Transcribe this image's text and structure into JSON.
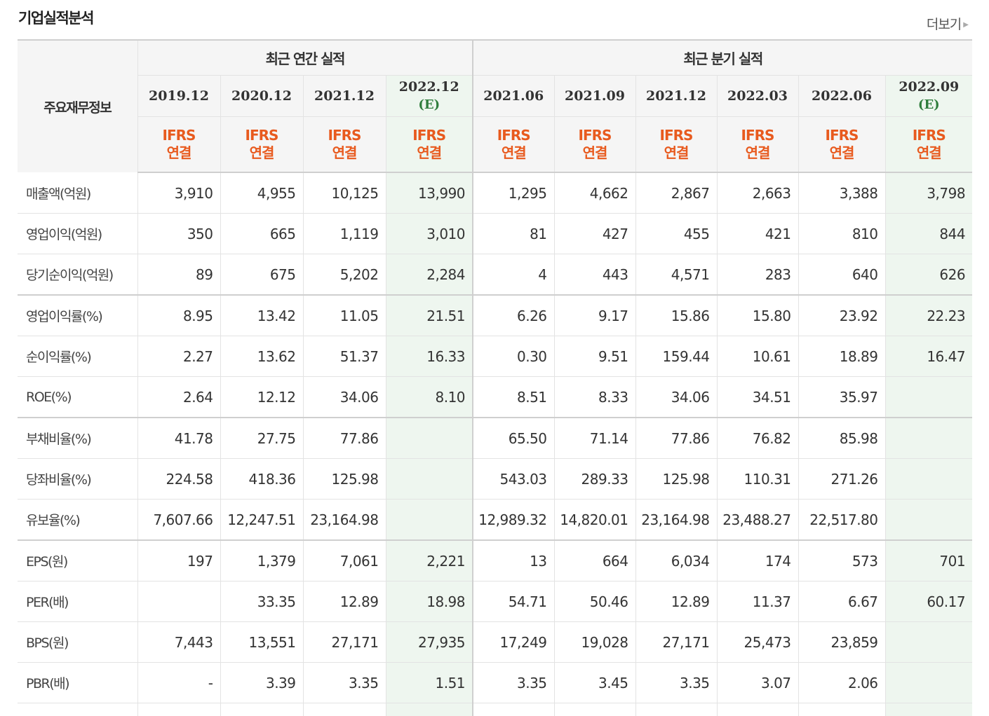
{
  "section": {
    "title": "기업실적분석",
    "more_label": "더보기"
  },
  "table": {
    "topic_header": "주요재무정보",
    "annual_header": "최근 연간 실적",
    "quarterly_header": "최근 분기 실적",
    "periods": [
      {
        "date": "2019.12",
        "est": "",
        "ifrs": "IFRS",
        "basis": "연결"
      },
      {
        "date": "2020.12",
        "est": "",
        "ifrs": "IFRS",
        "basis": "연결"
      },
      {
        "date": "2021.12",
        "est": "",
        "ifrs": "IFRS",
        "basis": "연결"
      },
      {
        "date": "2022.12",
        "est": "(E)",
        "ifrs": "IFRS",
        "basis": "연결"
      },
      {
        "date": "2021.06",
        "est": "",
        "ifrs": "IFRS",
        "basis": "연결"
      },
      {
        "date": "2021.09",
        "est": "",
        "ifrs": "IFRS",
        "basis": "연결"
      },
      {
        "date": "2021.12",
        "est": "",
        "ifrs": "IFRS",
        "basis": "연결"
      },
      {
        "date": "2022.03",
        "est": "",
        "ifrs": "IFRS",
        "basis": "연결"
      },
      {
        "date": "2022.06",
        "est": "",
        "ifrs": "IFRS",
        "basis": "연결"
      },
      {
        "date": "2022.09",
        "est": "(E)",
        "ifrs": "IFRS",
        "basis": "연결"
      }
    ],
    "rows": [
      {
        "label": "매출액(억원)",
        "values": [
          "3,910",
          "4,955",
          "10,125",
          "13,990",
          "1,295",
          "4,662",
          "2,867",
          "2,663",
          "3,388",
          "3,798"
        ]
      },
      {
        "label": "영업이익(억원)",
        "values": [
          "350",
          "665",
          "1,119",
          "3,010",
          "81",
          "427",
          "455",
          "421",
          "810",
          "844"
        ]
      },
      {
        "label": "당기순이익(억원)",
        "values": [
          "89",
          "675",
          "5,202",
          "2,284",
          "4",
          "443",
          "4,571",
          "283",
          "640",
          "626"
        ]
      },
      {
        "label": "영업이익률(%)",
        "values": [
          "8.95",
          "13.42",
          "11.05",
          "21.51",
          "6.26",
          "9.17",
          "15.86",
          "15.80",
          "23.92",
          "22.23"
        ]
      },
      {
        "label": "순이익률(%)",
        "values": [
          "2.27",
          "13.62",
          "51.37",
          "16.33",
          "0.30",
          "9.51",
          "159.44",
          "10.61",
          "18.89",
          "16.47"
        ]
      },
      {
        "label": "ROE(%)",
        "values": [
          "2.64",
          "12.12",
          "34.06",
          "8.10",
          "8.51",
          "8.33",
          "34.06",
          "34.51",
          "35.97",
          ""
        ]
      },
      {
        "label": "부채비율(%)",
        "values": [
          "41.78",
          "27.75",
          "77.86",
          "",
          "65.50",
          "71.14",
          "77.86",
          "76.82",
          "85.98",
          ""
        ]
      },
      {
        "label": "당좌비율(%)",
        "values": [
          "224.58",
          "418.36",
          "125.98",
          "",
          "543.03",
          "289.33",
          "125.98",
          "110.31",
          "271.26",
          ""
        ]
      },
      {
        "label": "유보율(%)",
        "values": [
          "7,607.66",
          "12,247.51",
          "23,164.98",
          "",
          "12,989.32",
          "14,820.01",
          "23,164.98",
          "23,488.27",
          "22,517.80",
          ""
        ]
      },
      {
        "label": "EPS(원)",
        "values": [
          "197",
          "1,379",
          "7,061",
          "2,221",
          "13",
          "664",
          "6,034",
          "174",
          "573",
          "701"
        ]
      },
      {
        "label": "PER(배)",
        "values": [
          "",
          "33.35",
          "12.89",
          "18.98",
          "54.71",
          "50.46",
          "12.89",
          "11.37",
          "6.67",
          "60.17"
        ]
      },
      {
        "label": "BPS(원)",
        "values": [
          "7,443",
          "13,551",
          "27,171",
          "27,935",
          "17,249",
          "19,028",
          "27,171",
          "25,473",
          "23,859",
          ""
        ]
      },
      {
        "label": "PBR(배)",
        "values": [
          "-",
          "3.39",
          "3.35",
          "1.51",
          "3.35",
          "3.45",
          "3.35",
          "3.07",
          "2.06",
          ""
        ]
      }
    ]
  }
}
